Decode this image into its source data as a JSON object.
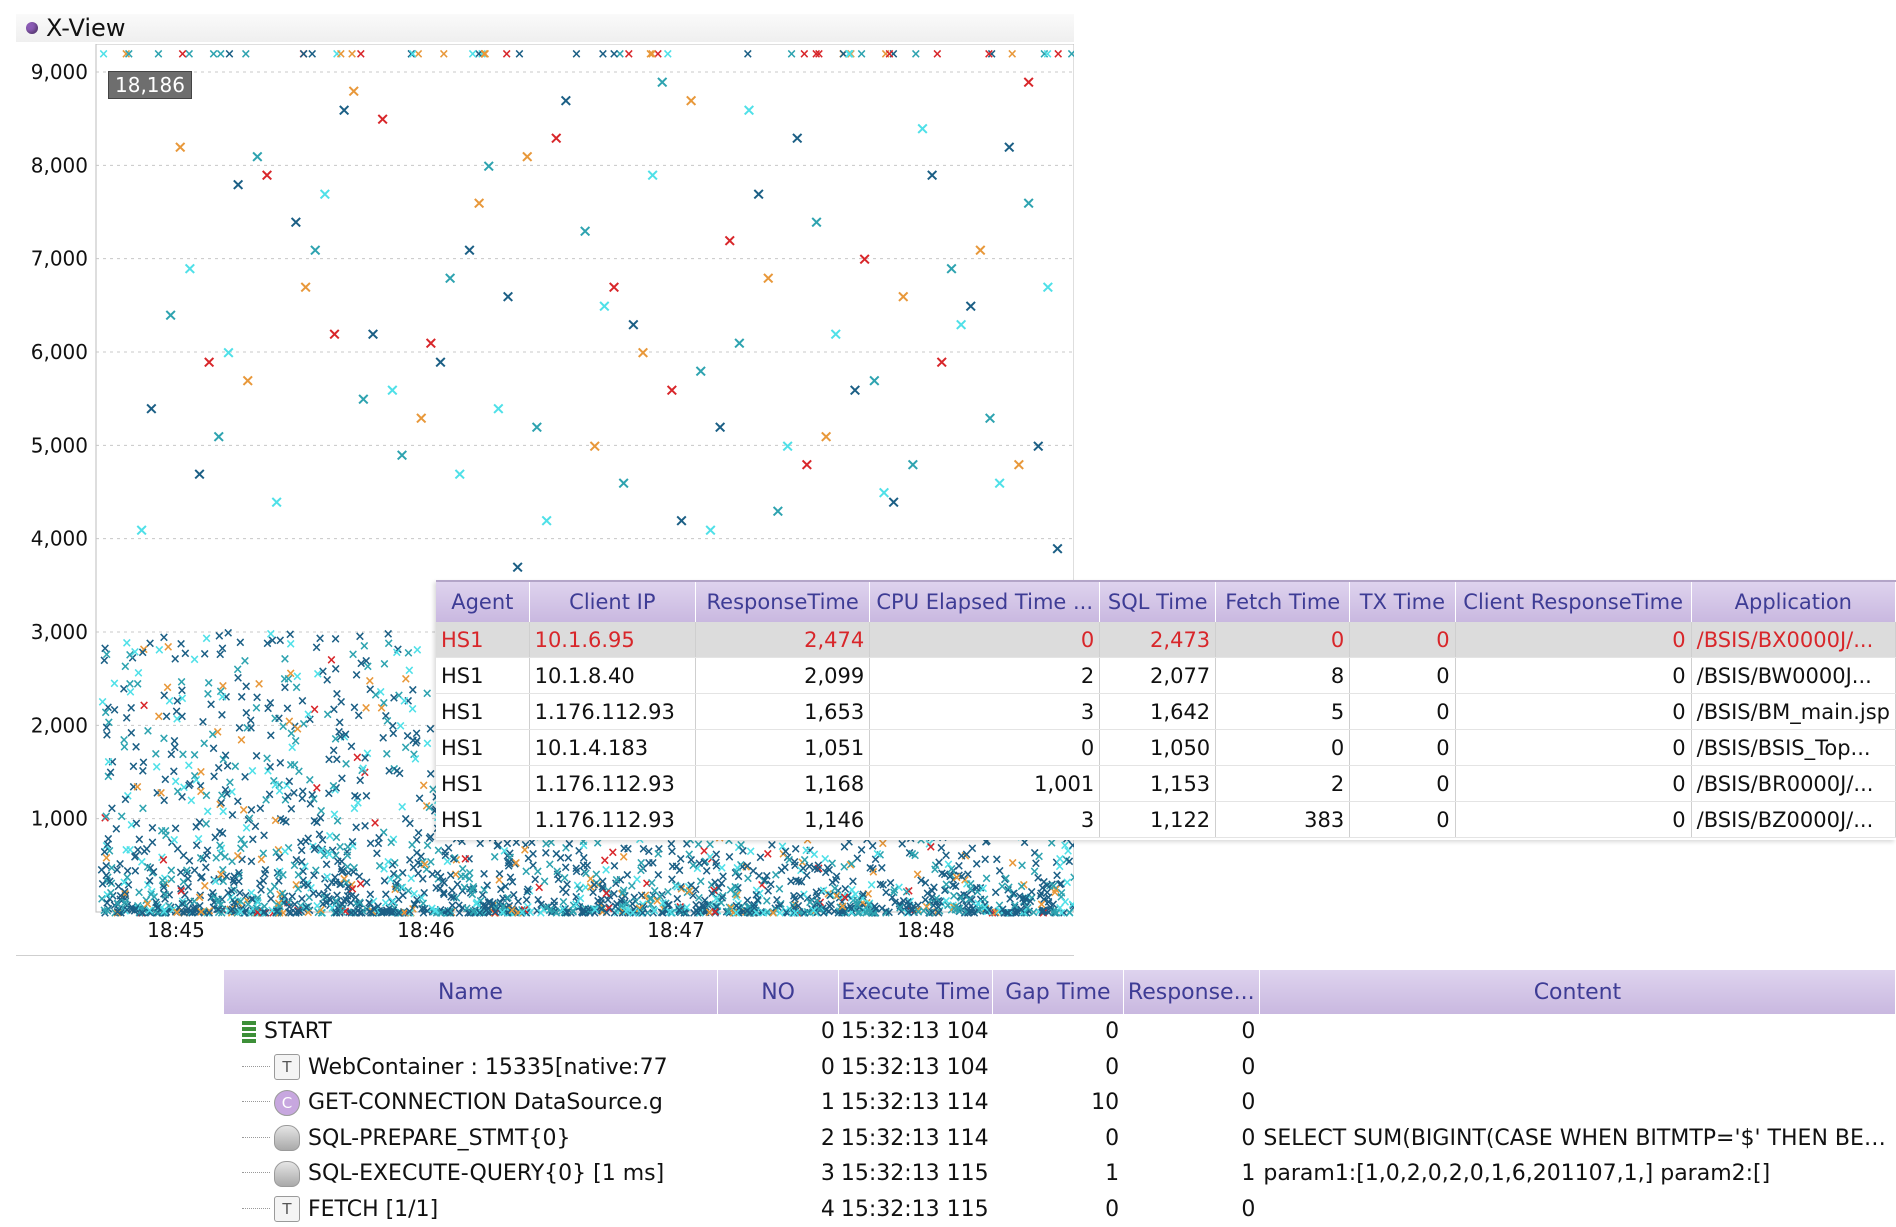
{
  "panel": {
    "title": "X-View",
    "selection_badge": "18,186"
  },
  "colors": {
    "dark_blue": "#1b5f85",
    "teal": "#2ea3b0",
    "cyan": "#4fe0e8",
    "orange": "#e8983a",
    "red": "#d8262a",
    "header_purple": "#3e3c95"
  },
  "chart_data": {
    "type": "scatter",
    "title": "",
    "xlabel": "",
    "ylabel": "",
    "x_ticks": [
      "18:45",
      "18:46",
      "18:47",
      "18:48"
    ],
    "y_ticks": [
      1000,
      2000,
      3000,
      4000,
      5000,
      6000,
      7000,
      8000,
      9000
    ],
    "y_tick_labels": [
      "1,000",
      "2,000",
      "3,000",
      "4,000",
      "5,000",
      "6,000",
      "7,000",
      "8,000",
      "9,000"
    ],
    "ylim": [
      0,
      9300
    ],
    "grid": true,
    "series_colors": [
      "#1b5f85",
      "#2ea3b0",
      "#4fe0e8",
      "#e8983a",
      "#d8262a"
    ],
    "series": [
      {
        "points": [
          [
            0.05,
            5400
          ],
          [
            0.1,
            4700
          ],
          [
            0.14,
            7800
          ],
          [
            0.2,
            7400
          ],
          [
            0.25,
            8600
          ],
          [
            0.28,
            6200
          ],
          [
            0.35,
            5900
          ],
          [
            0.38,
            7100
          ],
          [
            0.42,
            6600
          ],
          [
            0.43,
            3700
          ],
          [
            0.48,
            8700
          ],
          [
            0.55,
            6300
          ],
          [
            0.6,
            4200
          ],
          [
            0.64,
            5200
          ],
          [
            0.68,
            7700
          ],
          [
            0.72,
            8300
          ],
          [
            0.78,
            5600
          ],
          [
            0.82,
            4400
          ],
          [
            0.86,
            7900
          ],
          [
            0.9,
            6500
          ],
          [
            0.94,
            8200
          ],
          [
            0.97,
            5000
          ],
          [
            0.99,
            3900
          ]
        ]
      },
      {
        "points": [
          [
            0.07,
            6400
          ],
          [
            0.12,
            5100
          ],
          [
            0.16,
            8100
          ],
          [
            0.22,
            7100
          ],
          [
            0.27,
            5500
          ],
          [
            0.31,
            4900
          ],
          [
            0.36,
            6800
          ],
          [
            0.4,
            8000
          ],
          [
            0.45,
            5200
          ],
          [
            0.5,
            7300
          ],
          [
            0.54,
            4600
          ],
          [
            0.58,
            8900
          ],
          [
            0.62,
            5800
          ],
          [
            0.66,
            6100
          ],
          [
            0.7,
            4300
          ],
          [
            0.74,
            7400
          ],
          [
            0.8,
            5700
          ],
          [
            0.84,
            4800
          ],
          [
            0.88,
            6900
          ],
          [
            0.92,
            5300
          ],
          [
            0.96,
            7600
          ]
        ]
      },
      {
        "points": [
          [
            0.04,
            4100
          ],
          [
            0.09,
            6900
          ],
          [
            0.13,
            6000
          ],
          [
            0.18,
            4400
          ],
          [
            0.23,
            7700
          ],
          [
            0.3,
            5600
          ],
          [
            0.37,
            4700
          ],
          [
            0.41,
            5400
          ],
          [
            0.46,
            4200
          ],
          [
            0.52,
            6500
          ],
          [
            0.57,
            7900
          ],
          [
            0.63,
            4100
          ],
          [
            0.67,
            8600
          ],
          [
            0.71,
            5000
          ],
          [
            0.76,
            6200
          ],
          [
            0.81,
            4500
          ],
          [
            0.85,
            8400
          ],
          [
            0.89,
            6300
          ],
          [
            0.93,
            4600
          ],
          [
            0.98,
            6700
          ]
        ]
      },
      {
        "points": [
          [
            0.08,
            8200
          ],
          [
            0.15,
            5700
          ],
          [
            0.21,
            6700
          ],
          [
            0.26,
            8800
          ],
          [
            0.33,
            5300
          ],
          [
            0.39,
            7600
          ],
          [
            0.44,
            8100
          ],
          [
            0.51,
            5000
          ],
          [
            0.56,
            6000
          ],
          [
            0.61,
            8700
          ],
          [
            0.69,
            6800
          ],
          [
            0.75,
            5100
          ],
          [
            0.83,
            6600
          ],
          [
            0.91,
            7100
          ],
          [
            0.95,
            4800
          ]
        ]
      },
      {
        "points": [
          [
            0.11,
            5900
          ],
          [
            0.17,
            7900
          ],
          [
            0.24,
            6200
          ],
          [
            0.29,
            8500
          ],
          [
            0.34,
            6100
          ],
          [
            0.47,
            8300
          ],
          [
            0.53,
            6700
          ],
          [
            0.59,
            5600
          ],
          [
            0.65,
            7200
          ],
          [
            0.73,
            4800
          ],
          [
            0.79,
            7000
          ],
          [
            0.87,
            5900
          ],
          [
            0.96,
            8900
          ]
        ]
      }
    ]
  },
  "overlay_table": {
    "columns": [
      "Agent",
      "Client IP",
      "ResponseTime",
      "CPU Elapsed Time ...",
      "SQL Time",
      "Fetch Time",
      "TX Time",
      "Client ResponseTime",
      "Application"
    ],
    "rows": [
      [
        "HS1",
        "10.1.6.95",
        "2,474",
        "0",
        "2,473",
        "0",
        "0",
        "0",
        "/BSIS/BX0000J/..."
      ],
      [
        "HS1",
        "10.1.8.40",
        "2,099",
        "2",
        "2,077",
        "8",
        "0",
        "0",
        "/BSIS/BW0000J..."
      ],
      [
        "HS1",
        "1.176.112.93",
        "1,653",
        "3",
        "1,642",
        "5",
        "0",
        "0",
        "/BSIS/BM_main.jsp"
      ],
      [
        "HS1",
        "10.1.4.183",
        "1,051",
        "0",
        "1,050",
        "0",
        "0",
        "0",
        "/BSIS/BSIS_Top..."
      ],
      [
        "HS1",
        "1.176.112.93",
        "1,168",
        "1,001",
        "1,153",
        "2",
        "0",
        "0",
        "/BSIS/BR0000J/..."
      ],
      [
        "HS1",
        "1.176.112.93",
        "1,146",
        "3",
        "1,122",
        "383",
        "0",
        "0",
        "/BSIS/BZ0000J/..."
      ]
    ]
  },
  "trace_table": {
    "columns": [
      "Name",
      "NO",
      "Execute Time",
      "Gap Time",
      "Response...",
      "Content"
    ],
    "rows": [
      {
        "icon": "start-icon",
        "name": "START",
        "no": "0",
        "exec": "15:32:13 104",
        "gap": "0",
        "resp": "0",
        "content": ""
      },
      {
        "icon": "text-icon",
        "name": "WebContainer : 15335[native:77",
        "no": "0",
        "exec": "15:32:13 104",
        "gap": "0",
        "resp": "0",
        "content": ""
      },
      {
        "icon": "connection-icon",
        "name": "GET-CONNECTION DataSource.g",
        "no": "1",
        "exec": "15:32:13 114",
        "gap": "10",
        "resp": "0",
        "content": ""
      },
      {
        "icon": "database-icon",
        "name": "SQL-PREPARE_STMT{0}",
        "no": "2",
        "exec": "15:32:13 114",
        "gap": "0",
        "resp": "0",
        "content": "SELECT SUM(BIGINT(CASE WHEN BITMTP='$' THEN BEX..."
      },
      {
        "icon": "database-icon",
        "name": "SQL-EXECUTE-QUERY{0} [1 ms]",
        "no": "3",
        "exec": "15:32:13 115",
        "gap": "1",
        "resp": "1",
        "content": "param1:[1,0,2,0,2,0,1,6,201107,1,] param2:[]"
      },
      {
        "icon": "text-icon",
        "name": "FETCH [1/1]",
        "no": "4",
        "exec": "15:32:13 115",
        "gap": "0",
        "resp": "0",
        "content": ""
      }
    ]
  }
}
